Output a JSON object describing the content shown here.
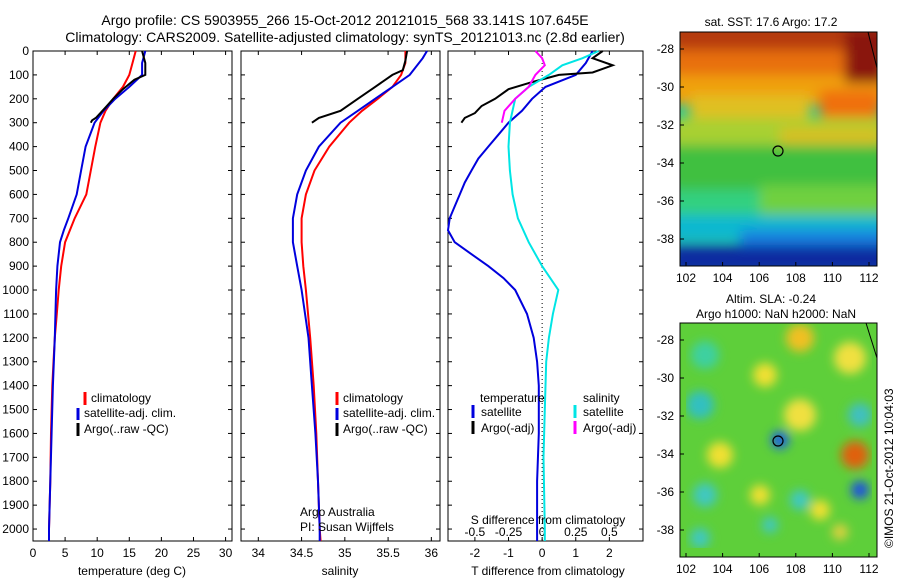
{
  "header": {
    "line1": "Argo profile: CS 5903955_266 15-Oct-2012 20121015_568 33.141S 107.645E",
    "line2": "Climatology: CARS2009. Satellite-adjusted climatology: synTS_20121013.nc (2.8d earlier)"
  },
  "legend": {
    "climatology": "climatology",
    "satellite": "satellite-adj. clim.",
    "argo": "Argo(..raw -QC)",
    "temperature": "temperature",
    "salinity": "salinity",
    "satellite_short": "satellite",
    "argo_adj": "Argo(-adj)"
  },
  "credits": {
    "line1": "Argo Australia",
    "line2": "PI: Susan Wijffels"
  },
  "colors": {
    "climatology": "#ff0000",
    "satellite": "#0000dd",
    "argo": "#000000",
    "sal_satellite": "#00e5e5",
    "sal_argo": "#ff00ff"
  },
  "maps": {
    "sst": {
      "title": "sat. SST: 17.6 Argo: 17.2",
      "xticks": [
        "102",
        "104",
        "106",
        "108",
        "110",
        "112"
      ],
      "yticks": [
        "-28",
        "-30",
        "-32",
        "-34",
        "-36",
        "-38"
      ]
    },
    "sla": {
      "title1": "Altim. SLA: -0.24",
      "title2": "Argo h1000: NaN h2000: NaN",
      "xticks": [
        "102",
        "104",
        "106",
        "108",
        "110",
        "112"
      ],
      "yticks": [
        "-28",
        "-30",
        "-32",
        "-34",
        "-36",
        "-38"
      ]
    }
  },
  "stamp": "©IMOS 21-Oct-2012 10:04:03",
  "chart_data": [
    {
      "type": "line",
      "xlabel": "temperature (deg C)",
      "xlim": [
        0,
        31
      ],
      "ylim": [
        2050,
        0
      ],
      "xticks": [
        "0",
        "5",
        "10",
        "15",
        "20",
        "25",
        "30"
      ],
      "yticks": [
        "0",
        "100",
        "200",
        "300",
        "400",
        "500",
        "600",
        "700",
        "800",
        "900",
        "1000",
        "1100",
        "1200",
        "1300",
        "1400",
        "1500",
        "1600",
        "1700",
        "1800",
        "1900",
        "2000"
      ],
      "series": [
        {
          "name": "climatology",
          "depth": [
            0,
            50,
            100,
            150,
            200,
            250,
            300,
            400,
            500,
            600,
            700,
            800,
            900,
            1000,
            1100,
            1200,
            1300,
            1400,
            1600,
            1800,
            2000,
            2050
          ],
          "values": [
            16,
            15.5,
            15,
            14,
            12.5,
            11.3,
            10.5,
            9.7,
            9,
            8.3,
            6.5,
            5,
            4.4,
            4,
            3.7,
            3.4,
            3.2,
            3,
            2.8,
            2.7,
            2.5,
            2.5
          ]
        },
        {
          "name": "satellite-adj. clim.",
          "depth": [
            0,
            50,
            100,
            150,
            200,
            250,
            300,
            400,
            500,
            600,
            700,
            750,
            800,
            900,
            1000,
            1200,
            1400,
            1600,
            1800,
            2000,
            2050
          ],
          "values": [
            17.5,
            17,
            17,
            15,
            12.8,
            11,
            9.6,
            8.2,
            7.5,
            6.8,
            5.5,
            4.8,
            4.2,
            3.8,
            3.6,
            3.4,
            3.1,
            2.9,
            2.7,
            2.5,
            2.5
          ]
        },
        {
          "name": "Argo(..raw -QC)",
          "depth": [
            0,
            50,
            100,
            120,
            160,
            200,
            230,
            260,
            280,
            290,
            300
          ],
          "values": [
            17,
            17.5,
            17.5,
            15.8,
            14,
            12.5,
            11.5,
            10.5,
            9.8,
            9.2,
            9
          ]
        }
      ]
    },
    {
      "type": "line",
      "xlabel": "salinity",
      "xlim": [
        33.8,
        36.1
      ],
      "ylim": [
        2050,
        0
      ],
      "xticks": [
        "34",
        "34.5",
        "35",
        "35.5",
        "36"
      ],
      "series": [
        {
          "name": "climatology",
          "depth": [
            0,
            50,
            100,
            150,
            200,
            250,
            300,
            400,
            500,
            600,
            700,
            800,
            900,
            1000,
            1200,
            1400,
            1600,
            1800,
            2000,
            2050
          ],
          "values": [
            35.7,
            35.7,
            35.65,
            35.55,
            35.38,
            35.2,
            35.05,
            34.82,
            34.65,
            34.55,
            34.5,
            34.5,
            34.52,
            34.55,
            34.6,
            34.64,
            34.67,
            34.69,
            34.71,
            34.72
          ]
        },
        {
          "name": "satellite-adj. clim.",
          "depth": [
            0,
            30,
            100,
            150,
            200,
            250,
            300,
            400,
            500,
            600,
            700,
            800,
            900,
            1000,
            1200,
            1400,
            1600,
            1800,
            2000,
            2050
          ],
          "values": [
            35.95,
            35.9,
            35.75,
            35.55,
            35.35,
            35.15,
            34.95,
            34.7,
            34.55,
            34.45,
            34.4,
            34.4,
            34.45,
            34.5,
            34.58,
            34.62,
            34.66,
            34.69,
            34.71,
            34.71
          ]
        },
        {
          "name": "Argo(..raw -QC)",
          "depth": [
            0,
            40,
            80,
            100,
            150,
            200,
            250,
            280,
            300
          ],
          "values": [
            35.72,
            35.7,
            35.67,
            35.55,
            35.35,
            35.15,
            34.95,
            34.7,
            34.62
          ]
        }
      ]
    },
    {
      "type": "line",
      "xlabel": "T difference from climatology",
      "top_xlabel": "S difference from climatology",
      "xlim": [
        -2.8,
        3.0
      ],
      "ylim": [
        2050,
        0
      ],
      "xticks": [
        "-2",
        "-1",
        "0",
        "1",
        "2"
      ],
      "top_xticks": [
        "-0.5",
        "-0.25",
        "0",
        "0.25",
        "0.5"
      ],
      "series": [
        {
          "name": "temperature satellite",
          "depth": [
            0,
            50,
            100,
            150,
            200,
            250,
            300,
            350,
            400,
            450,
            500,
            550,
            600,
            650,
            700,
            750,
            800,
            850,
            900,
            950,
            1000,
            1100,
            1200,
            1300,
            1400,
            1500,
            1600,
            1800,
            2000,
            2050
          ],
          "values": [
            1.5,
            1.3,
            1.0,
            0.1,
            -0.3,
            -0.6,
            -1.0,
            -1.3,
            -1.6,
            -1.9,
            -2.1,
            -2.3,
            -2.45,
            -2.6,
            -2.75,
            -2.8,
            -2.6,
            -2.1,
            -1.6,
            -1.15,
            -0.8,
            -0.45,
            -0.25,
            -0.15,
            -0.1,
            -0.1,
            -0.1,
            -0.15,
            -0.15,
            -0.15
          ]
        },
        {
          "name": "temperature Argo(-adj)",
          "depth": [
            0,
            30,
            60,
            90,
            100,
            130,
            160,
            200,
            230,
            260,
            280,
            300
          ],
          "values": [
            1.8,
            1.5,
            2.1,
            1.5,
            0.5,
            -0.3,
            -1.0,
            -1.4,
            -1.8,
            -2.0,
            -2.3,
            -2.4
          ]
        },
        {
          "name": "salinity satellite",
          "depth": [
            0,
            30,
            60,
            100,
            150,
            200,
            300,
            400,
            500,
            600,
            700,
            800,
            900,
            1000,
            1100,
            1200,
            1300,
            1500,
            1700,
            2000,
            2050
          ],
          "values": [
            0.42,
            0.3,
            0.15,
            0.05,
            -0.1,
            -0.2,
            -0.24,
            -0.25,
            -0.24,
            -0.22,
            -0.18,
            -0.1,
            0.0,
            0.12,
            0.08,
            0.05,
            0.03,
            0.02,
            0.01,
            0.02,
            0.02
          ]
        },
        {
          "name": "salinity Argo(-adj)",
          "depth": [
            0,
            30,
            60,
            100,
            150,
            200,
            250,
            300
          ],
          "values": [
            -0.05,
            0.0,
            0.02,
            -0.05,
            -0.1,
            -0.2,
            -0.28,
            -0.3
          ]
        }
      ]
    }
  ]
}
